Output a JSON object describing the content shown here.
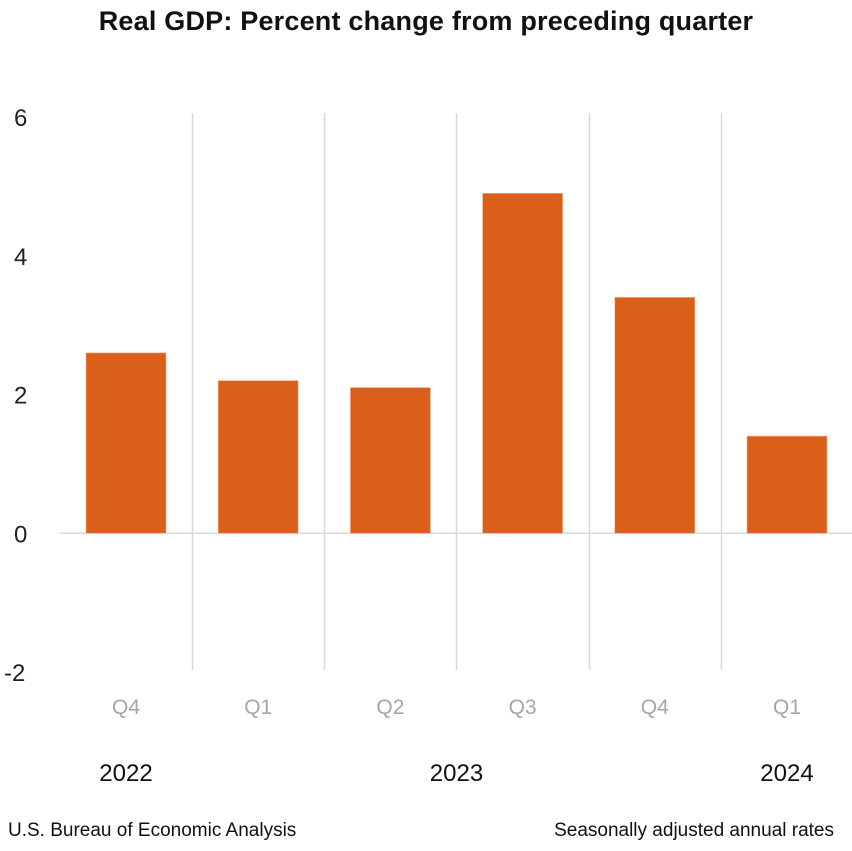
{
  "chart_data": {
    "type": "bar",
    "title": "Real GDP:  Percent change from preceding quarter",
    "categories": [
      "Q4",
      "Q1",
      "Q2",
      "Q3",
      "Q4",
      "Q1"
    ],
    "years": [
      {
        "label": "2022",
        "span": [
          0,
          0
        ]
      },
      {
        "label": "2023",
        "span": [
          1,
          4
        ]
      },
      {
        "label": "2024",
        "span": [
          5,
          5
        ]
      }
    ],
    "series": [
      {
        "name": "Real GDP percent change",
        "values": [
          2.6,
          2.2,
          2.1,
          4.9,
          3.4,
          1.4
        ],
        "color": "#d95f1a"
      }
    ],
    "xlabel": "",
    "ylabel": "",
    "ylim": [
      -2,
      6
    ],
    "yticks": [
      6,
      4,
      2,
      0,
      -2
    ],
    "grid": "vertical separators between quarters",
    "legend": "none"
  },
  "footer": {
    "source": "U.S. Bureau of Economic Analysis",
    "note": "Seasonally adjusted annual rates"
  },
  "colors": {
    "bar": "#d95f1a",
    "grid": "#d9d9d9",
    "xtick": "#a6a6a6"
  }
}
